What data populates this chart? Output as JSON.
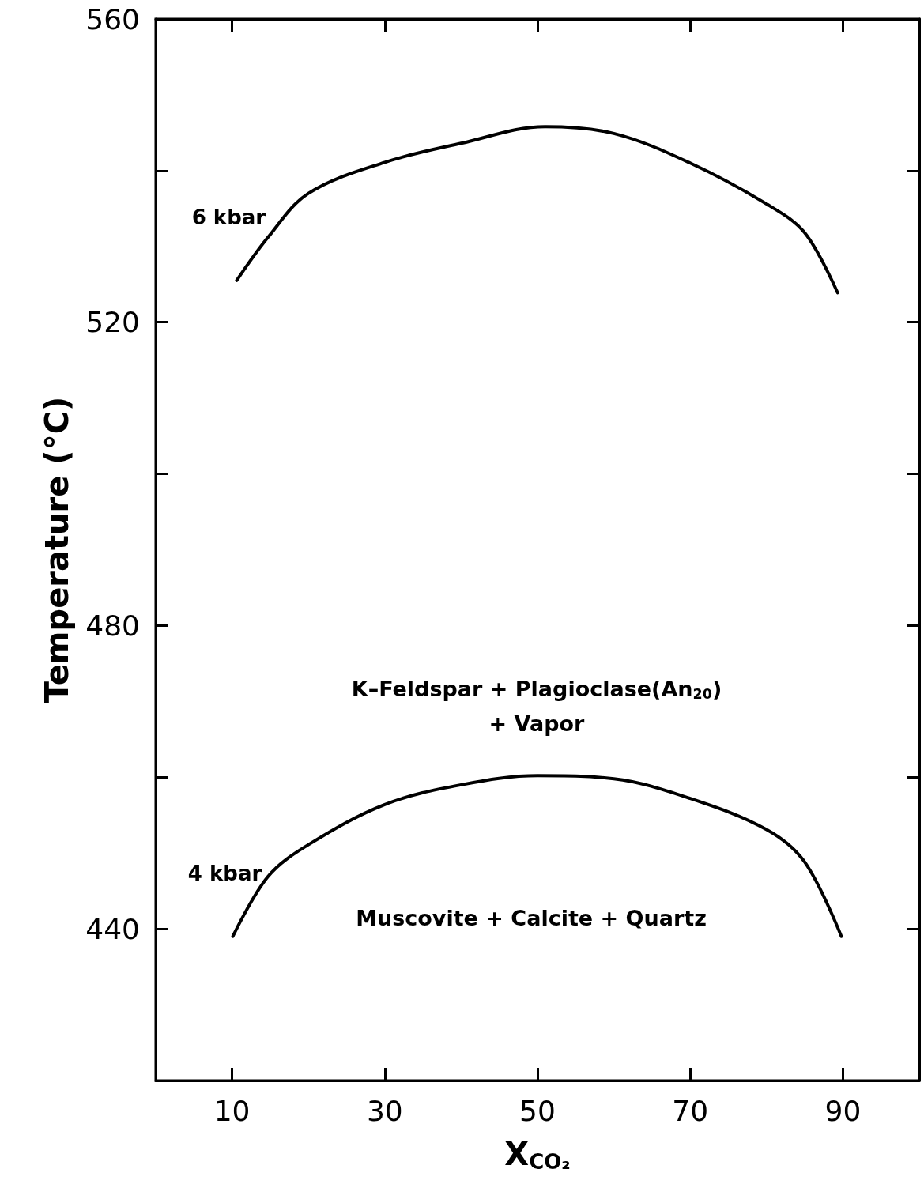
{
  "chart_data": {
    "type": "line",
    "xlabel": "X$_{CO₂}$",
    "ylabel": "Temperature (°C)",
    "xlim": [
      0,
      100
    ],
    "xticks": [
      10,
      30,
      50,
      70,
      90
    ],
    "ylim": [
      420,
      560
    ],
    "yticks": [
      {
        "value": 420,
        "label": null
      },
      440,
      {
        "value": 460,
        "label": null
      },
      480,
      {
        "value": 500,
        "label": null
      },
      520,
      {
        "value": 540,
        "label": null
      },
      560
    ],
    "grid": false,
    "legend": false,
    "marker": "none",
    "line_style": "solid",
    "series": [
      {
        "name": "6 kbar",
        "color": "#000000",
        "x": [
          10.6,
          14.7,
          20,
          30,
          40,
          51,
          60,
          70,
          80,
          85,
          89.3
        ],
        "values": [
          525.5,
          531.2,
          537,
          541.1,
          543.6,
          545.8,
          544.9,
          541,
          535.6,
          531.8,
          523.9
        ]
      },
      {
        "name": "4 kbar",
        "color": "#000000",
        "x": [
          10.1,
          14.7,
          20,
          30,
          40,
          50,
          60,
          70,
          80,
          85,
          89.8
        ],
        "values": [
          439,
          446.9,
          451.1,
          456.4,
          459,
          460.2,
          459.8,
          457.2,
          453.1,
          448.8,
          439
        ]
      }
    ],
    "annotations": [
      "K–Feldspar + Plagioclase(An$_{20}$)",
      "+ Vapor",
      "Muscovite + Calcite + Quartz"
    ]
  }
}
